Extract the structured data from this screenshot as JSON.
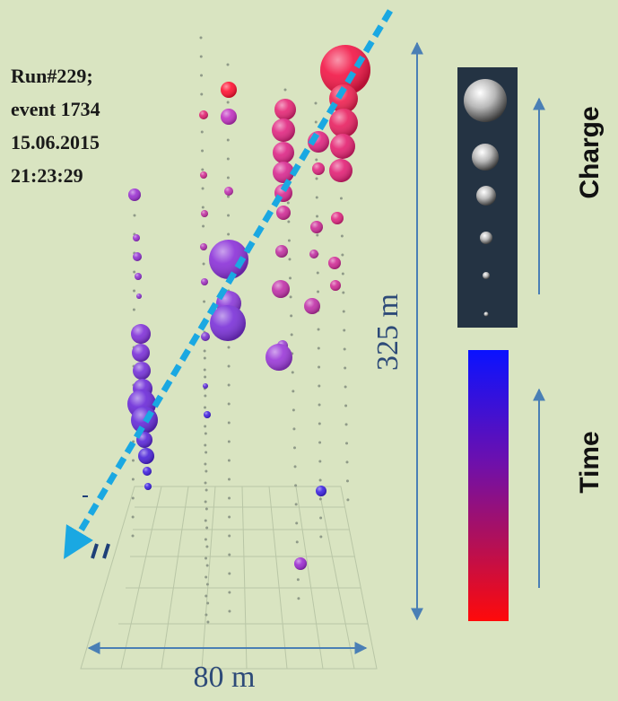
{
  "event_info": {
    "run": "Run#229;",
    "event": "event 1734",
    "date": "15.06.2015",
    "time": "21:23:29"
  },
  "scale": {
    "height": "325 m",
    "width": "80 m"
  },
  "legend": {
    "charge": "Charge",
    "time": "Time"
  }
}
